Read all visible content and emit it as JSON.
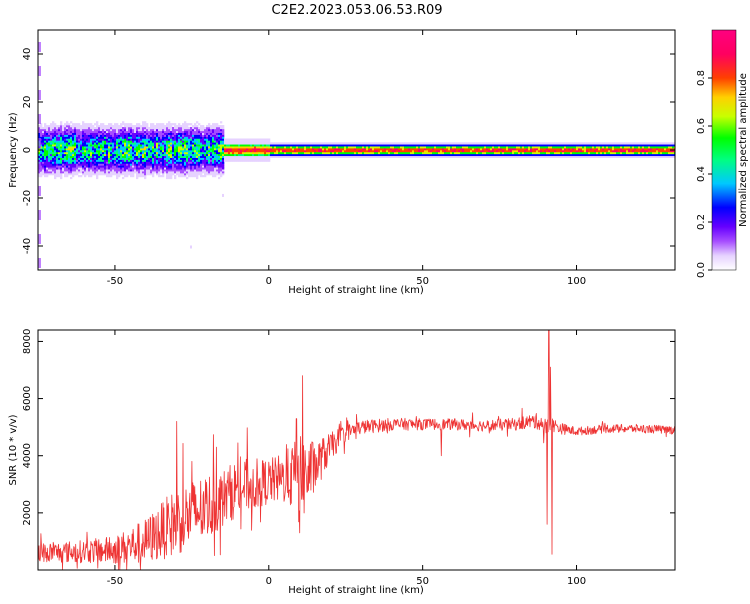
{
  "figure_title": "C2E2.2023.053.06.53.R09",
  "chart_data": [
    {
      "type": "heatmap",
      "title": "C2E2.2023.053.06.53.R09",
      "xlabel": "Height of straight line (km)",
      "ylabel": "Frequency (Hz)",
      "xlim": [
        -75,
        132
      ],
      "ylim": [
        -50,
        50
      ],
      "xticks": [
        -50,
        0,
        50,
        100
      ],
      "xtick_labels": [
        "-50",
        "0",
        "50",
        "100"
      ],
      "yticks": [
        -40,
        -20,
        0,
        20,
        40
      ],
      "ytick_labels": [
        "-40",
        "-20",
        "0",
        "20",
        "40"
      ],
      "colorbar": {
        "label": "Normalized spectral amplitude",
        "range": [
          0,
          1
        ],
        "ticks": [
          0.0,
          0.2,
          0.4,
          0.6,
          0.8
        ],
        "tick_labels": [
          "0.0",
          "0.2",
          "0.4",
          "0.6",
          "0.8"
        ],
        "colormap": [
          "#ffffff",
          "#e6d2ff",
          "#a64dff",
          "#6600ff",
          "#0000ff",
          "#00c8ff",
          "#00ff80",
          "#00ff00",
          "#c8ff00",
          "#ffd000",
          "#ff4000",
          "#ff0060",
          "#ff0080"
        ]
      },
      "description_of_values": "Energy concentrated near 0 Hz across all heights; broad spread (about -10 to +8 Hz) below ~-15 km, narrow band with peak (red) amplitude near 0 Hz above ~-15 km."
    },
    {
      "type": "line",
      "xlabel": "Height of straight line (km)",
      "ylabel": "SNR (10 * v/v)",
      "xlim": [
        -75,
        132
      ],
      "ylim": [
        0,
        8400
      ],
      "xticks": [
        -50,
        0,
        50,
        100
      ],
      "xtick_labels": [
        "-50",
        "0",
        "50",
        "100"
      ],
      "yticks": [
        2000,
        4000,
        6000,
        8000
      ],
      "ytick_labels": [
        "2000",
        "4000",
        "6000",
        "8000"
      ],
      "color": "#ee3333",
      "series": [
        {
          "name": "SNR",
          "trend_x": [
            -75,
            -60,
            -50,
            -40,
            -30,
            -20,
            -15,
            -10,
            -5,
            0,
            5,
            8,
            10,
            12,
            15,
            20,
            25,
            30,
            40,
            50,
            60,
            70,
            80,
            85,
            88,
            90,
            92,
            95,
            100,
            110,
            120,
            132
          ],
          "trend_y": [
            600,
            650,
            700,
            1000,
            1700,
            2200,
            2500,
            2900,
            3000,
            3100,
            3200,
            3300,
            3100,
            3300,
            3600,
            4300,
            4800,
            5000,
            5100,
            5100,
            5100,
            5050,
            5100,
            5200,
            5200,
            5000,
            5100,
            4950,
            4850,
            4950,
            4950,
            4900
          ],
          "noise_amplitude": [
            350,
            400,
            500,
            800,
            1200,
            1200,
            1000,
            1000,
            900,
            800,
            900,
            1200,
            1600,
            1400,
            900,
            500,
            300,
            250,
            220,
            200,
            200,
            200,
            220,
            250,
            300,
            300,
            250,
            200,
            150,
            150,
            150,
            150
          ],
          "spikes": [
            {
              "x": -30,
              "y": 5200
            },
            {
              "x": -25,
              "y": 3800
            },
            {
              "x": -17,
              "y": 4300
            },
            {
              "x": -10,
              "y": 4450
            },
            {
              "x": 9,
              "y": 5300
            },
            {
              "x": 11,
              "y": 6800
            },
            {
              "x": 10,
              "y": 1300
            },
            {
              "x": 91,
              "y": 8400
            },
            {
              "x": 91.5,
              "y": 7100
            },
            {
              "x": 92,
              "y": 550
            },
            {
              "x": 90.5,
              "y": 1600
            },
            {
              "x": 56,
              "y": 4000
            }
          ]
        }
      ]
    }
  ]
}
